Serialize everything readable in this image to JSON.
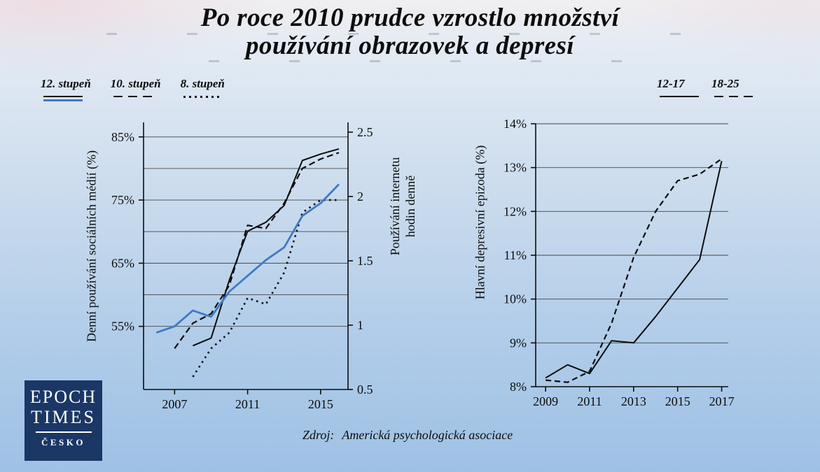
{
  "title": {
    "line1": "Po roce 2010 prudce vzrostlo množství",
    "line2": "používání obrazovek a depresí"
  },
  "source": {
    "prefix": "Zdroj:",
    "text": "Americká psychologická asociace"
  },
  "logo": {
    "line1": "EPOCH",
    "line2": "TIMES",
    "line3": "ČESKO"
  },
  "legend_left": {
    "items": [
      {
        "label": "12. stupeň",
        "styles": [
          "solid-black-thin",
          "solid-blue"
        ]
      },
      {
        "label": "10. stupeň",
        "styles": [
          "dashed-black"
        ]
      },
      {
        "label": "8. stupeň",
        "styles": [
          "dotted-black"
        ]
      }
    ]
  },
  "legend_right": {
    "items": [
      {
        "label": "12-17",
        "styles": [
          "solid-black"
        ]
      },
      {
        "label": "18-25",
        "styles": [
          "dashed-black"
        ]
      }
    ]
  },
  "colors": {
    "accent_blue": "#3f7ac2",
    "line_black": "#0d0d0d",
    "logo_navy": "#1a3766"
  },
  "chart_data": [
    {
      "type": "line",
      "title": "",
      "x": [
        2006,
        2007,
        2008,
        2009,
        2010,
        2011,
        2012,
        2013,
        2014,
        2015,
        2016
      ],
      "xlim": [
        2005.3,
        2016.5
      ],
      "x_ticks": [
        [
          2007,
          "2007"
        ],
        [
          2011,
          "2011"
        ],
        [
          2015,
          "2015"
        ]
      ],
      "grid": true,
      "legend_position": "top-left",
      "axes": {
        "left": {
          "label": "Denní používání sociálních médií (%)",
          "lim": [
            45,
            87.3
          ],
          "ticks": [
            [
              55,
              "55%"
            ],
            [
              65,
              "65%"
            ],
            [
              75,
              "75%"
            ],
            [
              85,
              "85%"
            ]
          ],
          "gridlines": [
            55,
            60,
            65,
            70,
            75,
            80,
            85
          ]
        },
        "right": {
          "label": "Používání internetu hodin denně",
          "label_lines": [
            "Používání internetu",
            "hodin denně"
          ],
          "lim": [
            0.5,
            2.576
          ],
          "ticks": [
            [
              0.5,
              "0.5"
            ],
            [
              1,
              "1"
            ],
            [
              1.5,
              "1.5"
            ],
            [
              2,
              "2"
            ],
            [
              2.5,
              "2.5"
            ]
          ]
        }
      },
      "series": [
        {
          "id": "grade8-social-media",
          "name": "8. stupeň",
          "axis": "left",
          "color": "#0d0d0d",
          "width": 2.6,
          "dash": "2.5 5.5",
          "values": [
            null,
            null,
            47,
            51.5,
            54,
            59.5,
            58.5,
            63.5,
            73,
            75,
            75
          ]
        },
        {
          "id": "grade10-social-media",
          "name": "10. stupeň",
          "axis": "left",
          "color": "#0d0d0d",
          "width": 2.2,
          "dash": "9 5",
          "values": [
            null,
            51.5,
            55.5,
            57,
            61.5,
            71,
            70.5,
            74.5,
            80,
            81.5,
            82.5
          ]
        },
        {
          "id": "internet-hours",
          "name": "Používání internetu (hodin denně)",
          "axis": "right",
          "color": "#0d0d0d",
          "width": 2,
          "values": [
            null,
            null,
            0.84,
            0.9,
            1.35,
            1.73,
            1.8,
            1.93,
            2.28,
            2.33,
            2.37
          ]
        },
        {
          "id": "grade12-social-media",
          "name": "12. stupeň",
          "axis": "left",
          "color": "#3f7ac2",
          "width": 2.8,
          "values": [
            54,
            55,
            57.5,
            56.5,
            60.5,
            63,
            65.5,
            67.5,
            72.5,
            74.5,
            77.5
          ]
        }
      ]
    },
    {
      "type": "line",
      "title": "",
      "x": [
        2009,
        2010,
        2011,
        2012,
        2013,
        2014,
        2015,
        2016,
        2017
      ],
      "xlim": [
        2008.55,
        2017.3
      ],
      "x_ticks": [
        [
          2009,
          "2009"
        ],
        [
          2011,
          "2011"
        ],
        [
          2013,
          "2013"
        ],
        [
          2015,
          "2015"
        ],
        [
          2017,
          "2017"
        ]
      ],
      "grid": true,
      "legend_position": "top-right",
      "axes": {
        "left": {
          "label": "Hlavní depresivní epizoda (%)",
          "lim": [
            8,
            14
          ],
          "ticks": [
            [
              8,
              "8%"
            ],
            [
              9,
              "9%"
            ],
            [
              10,
              "10%"
            ],
            [
              11,
              "11%"
            ],
            [
              12,
              "12%"
            ],
            [
              13,
              "13%"
            ],
            [
              14,
              "14%"
            ]
          ],
          "gridlines": [
            9,
            10,
            11,
            12,
            13,
            14
          ]
        }
      },
      "series": [
        {
          "id": "age-18-25",
          "name": "18-25",
          "axis": "left",
          "color": "#0d0d0d",
          "width": 2.2,
          "dash": "8 5",
          "values": [
            8.15,
            8.1,
            8.35,
            9.45,
            10.95,
            12.0,
            12.7,
            12.85,
            13.2
          ]
        },
        {
          "id": "age-12-17",
          "name": "12-17",
          "axis": "left",
          "color": "#0d0d0d",
          "width": 2,
          "values": [
            8.2,
            8.5,
            8.3,
            9.05,
            9.0,
            9.6,
            10.25,
            10.9,
            13.15
          ]
        }
      ]
    }
  ]
}
